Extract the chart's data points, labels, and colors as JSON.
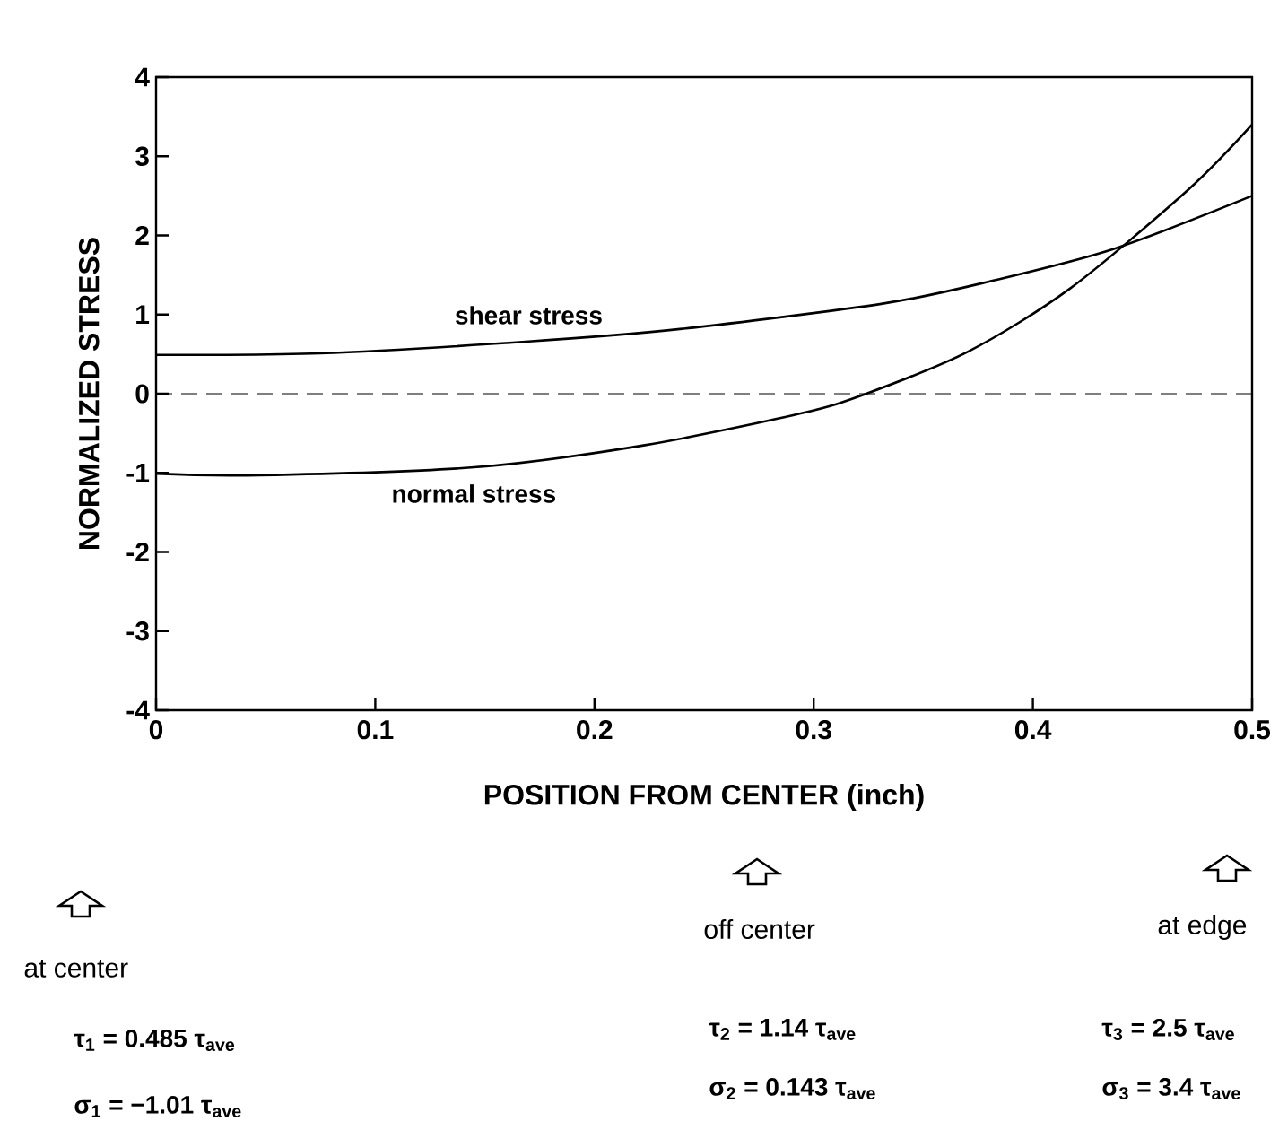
{
  "chart_data": {
    "type": "line",
    "xlabel": "POSITION FROM CENTER (inch)",
    "ylabel": "NORMALIZED STRESS",
    "xlim": [
      0,
      0.5
    ],
    "ylim": [
      -4,
      4
    ],
    "xticks": [
      0,
      0.1,
      0.2,
      0.3,
      0.4,
      0.5
    ],
    "yticks": [
      -4,
      -3,
      -2,
      -1,
      0,
      1,
      2,
      3,
      4
    ],
    "grid": false,
    "marker": "none",
    "line_style": "solid",
    "series": [
      {
        "name": "shear stress",
        "color": "#000000",
        "x": [
          0,
          0.075,
          0.17,
          0.24,
          0.332,
          0.382,
          0.437,
          0.5
        ],
        "values": [
          0.49,
          0.51,
          0.66,
          0.82,
          1.14,
          1.43,
          1.83,
          2.5
        ]
      },
      {
        "name": "normal stress",
        "color": "#000000",
        "x": [
          0,
          0.047,
          0.145,
          0.223,
          0.294,
          0.324,
          0.371,
          0.417,
          0.471,
          0.5
        ],
        "values": [
          -1.01,
          -1.03,
          -0.93,
          -0.65,
          -0.25,
          0,
          0.54,
          1.33,
          2.58,
          3.4
        ]
      }
    ],
    "ref_lines": [
      {
        "axis": "y",
        "value": 0,
        "line_style": "dashed",
        "color": "#000000"
      }
    ],
    "annotations": [
      "at center",
      "τ$_{1}$ = 0.485 τ$_{ave}$",
      "σ$_{1}$ = −1.01 τ$_{ave}$",
      "off center",
      "τ$_{2}$ = 1.14 τ$_{ave}$",
      "σ$_{2}$ = 0.143 τ$_{ave}$",
      "at edge",
      "τ$_{3}$ = 2.5 τ$_{ave}$",
      "σ$_{3}$ = 3.4 τ$_{ave}$"
    ]
  }
}
